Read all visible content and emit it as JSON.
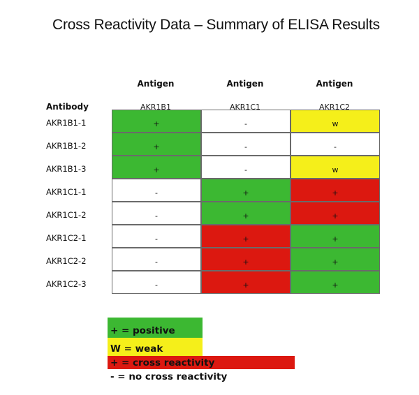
{
  "title": "Cross Reactivity Data – Summary of ELISA Results",
  "antibody_header": "Antibody",
  "antigen_header": "Antigen",
  "columns": [
    "AKR1B1",
    "AKR1C1",
    "AKR1C2"
  ],
  "rows": [
    {
      "label": "AKR1B1-1",
      "cells": [
        {
          "symbol": "+",
          "result": "positive"
        },
        {
          "symbol": "-",
          "result": "none"
        },
        {
          "symbol": "w",
          "result": "weak"
        }
      ]
    },
    {
      "label": "AKR1B1-2",
      "cells": [
        {
          "symbol": "+",
          "result": "positive"
        },
        {
          "symbol": "-",
          "result": "none"
        },
        {
          "symbol": "-",
          "result": "none"
        }
      ]
    },
    {
      "label": "AKR1B1-3",
      "cells": [
        {
          "symbol": "+",
          "result": "positive"
        },
        {
          "symbol": "-",
          "result": "none"
        },
        {
          "symbol": "w",
          "result": "weak"
        }
      ]
    },
    {
      "label": "AKR1C1-1",
      "cells": [
        {
          "symbol": "-",
          "result": "none"
        },
        {
          "symbol": "+",
          "result": "positive"
        },
        {
          "symbol": "+",
          "result": "cross"
        }
      ]
    },
    {
      "label": "AKR1C1-2",
      "cells": [
        {
          "symbol": "-",
          "result": "none"
        },
        {
          "symbol": "+",
          "result": "positive"
        },
        {
          "symbol": "+",
          "result": "cross"
        }
      ]
    },
    {
      "label": "AKR1C2-1",
      "cells": [
        {
          "symbol": "-",
          "result": "none"
        },
        {
          "symbol": "+",
          "result": "cross"
        },
        {
          "symbol": "+",
          "result": "positive"
        }
      ]
    },
    {
      "label": "AKR1C2-2",
      "cells": [
        {
          "symbol": "-",
          "result": "none"
        },
        {
          "symbol": "+",
          "result": "cross"
        },
        {
          "symbol": "+",
          "result": "positive"
        }
      ]
    },
    {
      "label": "AKR1C2-3",
      "cells": [
        {
          "symbol": "-",
          "result": "none"
        },
        {
          "symbol": "+",
          "result": "cross"
        },
        {
          "symbol": "+",
          "result": "positive"
        }
      ]
    }
  ],
  "legend": [
    {
      "key": "positive",
      "text": "+ = positive"
    },
    {
      "key": "weak",
      "text": "W = weak"
    },
    {
      "key": "cross",
      "text": "+ = cross reactivity"
    },
    {
      "key": "none",
      "text": "- = no cross reactivity"
    }
  ],
  "colors": {
    "positive": "#3cb832",
    "weak": "#f5ef1a",
    "cross": "#dc1810",
    "none": "#ffffff"
  }
}
